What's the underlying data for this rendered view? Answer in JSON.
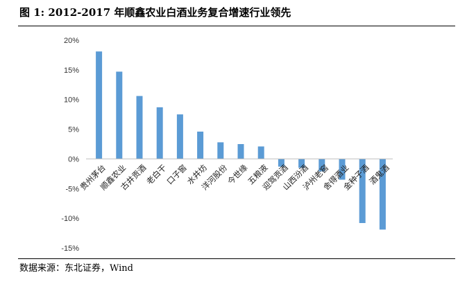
{
  "figure": {
    "title": "图  1:  2012-2017 年顺鑫农业白酒业务复合增速行业领先",
    "source": "数据来源：东北证券，Wind"
  },
  "chart_data": {
    "type": "bar",
    "title": "",
    "xlabel": "",
    "ylabel": "",
    "ylim": [
      -0.15,
      0.2
    ],
    "y_ticks": [
      "20%",
      "15%",
      "10%",
      "5%",
      "0%",
      "-5%",
      "-10%",
      "-15%"
    ],
    "y_tick_values": [
      0.2,
      0.15,
      0.1,
      0.05,
      0.0,
      -0.05,
      -0.1,
      -0.15
    ],
    "grid": false,
    "legend": "none",
    "bar_color": "#5b9bd5",
    "categories": [
      "贵州茅台",
      "顺鑫农业",
      "古井贡酒",
      "老白干",
      "口子窖",
      "水井坊",
      "洋河股份",
      "今世缘",
      "五粮液",
      "迎驾贡酒",
      "山西汾酒",
      "泸州老窖",
      "舍得酒业",
      "金种子酒",
      "酒鬼酒"
    ],
    "values": [
      0.181,
      0.147,
      0.106,
      0.087,
      0.075,
      0.046,
      0.028,
      0.025,
      0.021,
      -0.013,
      -0.015,
      -0.021,
      -0.035,
      -0.108,
      -0.119
    ]
  }
}
